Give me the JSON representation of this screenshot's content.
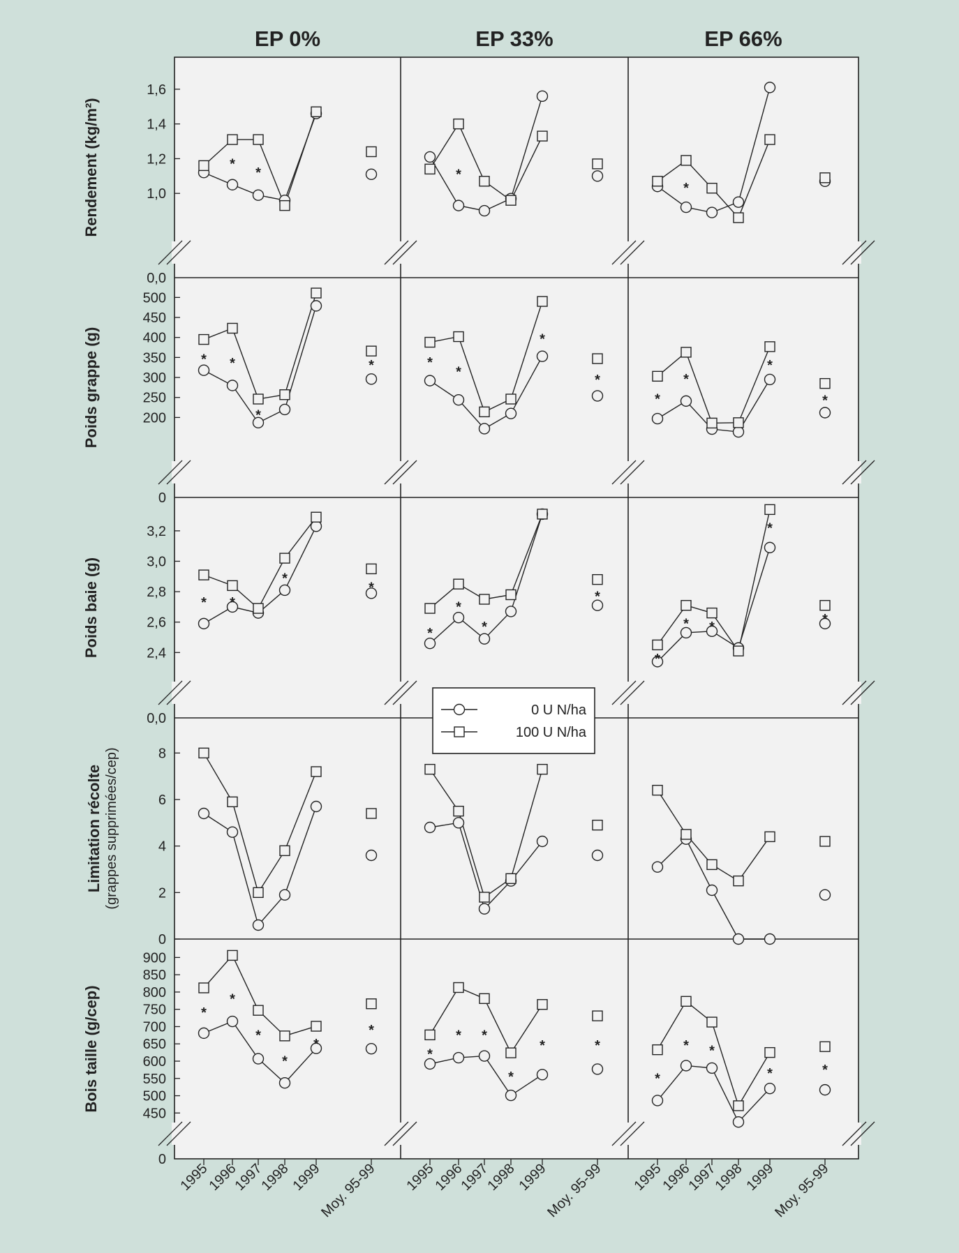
{
  "figure": {
    "columns": [
      "EP 0%",
      "EP 33%",
      "EP 66%"
    ],
    "x_tick_labels": [
      "1995",
      "1996",
      "1997",
      "1998",
      "1999",
      "Moy. 95-99"
    ],
    "legend": [
      {
        "label": "0 U N/ha",
        "marker": "circle"
      },
      {
        "label": "100 U  N/ha",
        "marker": "square"
      }
    ],
    "significance_marker": "*",
    "colors": {
      "background": "#cfe0da",
      "panel": "#f2f2f2",
      "ink": "#222222"
    }
  },
  "chart_data": [
    {
      "type": "line",
      "row": 0,
      "ylabel": "Rendement (kg/m²)",
      "ylabel2": "",
      "ylim": [
        0.82,
        1.72
      ],
      "yticks": [
        "1,0",
        "1,2",
        "1,4",
        "1,6"
      ],
      "ytick_values": [
        1.0,
        1.2,
        1.4,
        1.6
      ],
      "bottom_label": "0,0",
      "axis_break": true,
      "x": [
        "1995",
        "1996",
        "1997",
        "1998",
        "1999",
        "Moy. 95-99"
      ],
      "panels": [
        {
          "column": "EP 0%",
          "series": [
            {
              "name": "0 U N/ha",
              "values": [
                1.12,
                1.05,
                0.99,
                0.96,
                1.46,
                1.11
              ]
            },
            {
              "name": "100 U  N/ha",
              "values": [
                1.16,
                1.31,
                1.31,
                0.93,
                1.47,
                1.24
              ]
            }
          ],
          "stars": [
            {
              "x": 1,
              "y": 1.18
            },
            {
              "x": 2,
              "y": 1.13
            }
          ]
        },
        {
          "column": "EP 33%",
          "series": [
            {
              "name": "0 U N/ha",
              "values": [
                1.21,
                0.93,
                0.9,
                0.97,
                1.56,
                1.1
              ]
            },
            {
              "name": "100 U  N/ha",
              "values": [
                1.14,
                1.4,
                1.07,
                0.96,
                1.33,
                1.17
              ]
            }
          ],
          "stars": [
            {
              "x": 1,
              "y": 1.12
            }
          ]
        },
        {
          "column": "EP 66%",
          "series": [
            {
              "name": "0 U N/ha",
              "values": [
                1.04,
                0.92,
                0.89,
                0.95,
                1.61,
                1.07
              ]
            },
            {
              "name": "100 U  N/ha",
              "values": [
                1.07,
                1.19,
                1.03,
                0.86,
                1.31,
                1.09
              ]
            }
          ],
          "stars": [
            {
              "x": 1,
              "y": 1.04
            }
          ]
        }
      ]
    },
    {
      "type": "line",
      "row": 1,
      "ylabel": "Poids grappe (g)",
      "ylabel2": "",
      "ylim": [
        110,
        525
      ],
      "yticks": [
        "200",
        "250",
        "300",
        "350",
        "400",
        "450",
        "500"
      ],
      "ytick_values": [
        200,
        250,
        300,
        350,
        400,
        450,
        500
      ],
      "bottom_label": "0",
      "axis_break": true,
      "x": [
        "1995",
        "1996",
        "1997",
        "1998",
        "1999",
        "Moy. 95-99"
      ],
      "panels": [
        {
          "column": "EP 0%",
          "series": [
            {
              "name": "0 U N/ha",
              "values": [
                318,
                280,
                187,
                220,
                479,
                296
              ]
            },
            {
              "name": "100 U  N/ha",
              "values": [
                395,
                423,
                246,
                257,
                511,
                366
              ]
            }
          ],
          "stars": [
            {
              "x": 0,
              "y": 350
            },
            {
              "x": 1,
              "y": 340
            },
            {
              "x": 2,
              "y": 210
            },
            {
              "x": 5,
              "y": 335
            }
          ]
        },
        {
          "column": "EP 33%",
          "series": [
            {
              "name": "0 U N/ha",
              "values": [
                292,
                244,
                172,
                210,
                353,
                254
              ]
            },
            {
              "name": "100 U  N/ha",
              "values": [
                388,
                402,
                214,
                246,
                490,
                347
              ]
            }
          ],
          "stars": [
            {
              "x": 0,
              "y": 342
            },
            {
              "x": 1,
              "y": 318
            },
            {
              "x": 4,
              "y": 400
            },
            {
              "x": 5,
              "y": 298
            }
          ]
        },
        {
          "column": "EP 66%",
          "series": [
            {
              "name": "0 U N/ha",
              "values": [
                197,
                241,
                171,
                164,
                295,
                212
              ]
            },
            {
              "name": "100 U  N/ha",
              "values": [
                303,
                363,
                186,
                187,
                377,
                285
              ]
            }
          ],
          "stars": [
            {
              "x": 0,
              "y": 250
            },
            {
              "x": 1,
              "y": 300
            },
            {
              "x": 4,
              "y": 335
            },
            {
              "x": 5,
              "y": 247
            }
          ]
        }
      ]
    },
    {
      "type": "line",
      "row": 2,
      "ylabel": "Poids baie (g)",
      "ylabel2": "",
      "ylim": [
        2.25,
        3.36
      ],
      "yticks": [
        "2,4",
        "2,6",
        "2,8",
        "3,0",
        "3,2"
      ],
      "ytick_values": [
        2.4,
        2.6,
        2.8,
        3.0,
        3.2
      ],
      "bottom_label": "0,0",
      "axis_break": true,
      "x": [
        "1995",
        "1996",
        "1997",
        "1998",
        "1999",
        "Moy. 95-99"
      ],
      "panels": [
        {
          "column": "EP 0%",
          "series": [
            {
              "name": "0 U N/ha",
              "values": [
                2.59,
                2.7,
                2.66,
                2.81,
                3.23,
                2.79
              ]
            },
            {
              "name": "100 U  N/ha",
              "values": [
                2.91,
                2.84,
                2.69,
                3.02,
                3.29,
                2.95
              ]
            }
          ],
          "stars": [
            {
              "x": 0,
              "y": 2.74
            },
            {
              "x": 1,
              "y": 2.74
            },
            {
              "x": 3,
              "y": 2.9
            },
            {
              "x": 5,
              "y": 2.84
            }
          ]
        },
        {
          "column": "EP 33%",
          "series": [
            {
              "name": "0 U N/ha",
              "values": [
                2.46,
                2.63,
                2.49,
                2.67,
                3.31,
                2.71
              ]
            },
            {
              "name": "100 U  N/ha",
              "values": [
                2.69,
                2.85,
                2.75,
                2.78,
                3.31,
                2.88
              ]
            }
          ],
          "stars": [
            {
              "x": 0,
              "y": 2.54
            },
            {
              "x": 1,
              "y": 2.71
            },
            {
              "x": 2,
              "y": 2.58
            },
            {
              "x": 5,
              "y": 2.78
            }
          ]
        },
        {
          "column": "EP 66%",
          "series": [
            {
              "name": "0 U N/ha",
              "values": [
                2.34,
                2.53,
                2.54,
                2.43,
                3.09,
                2.59
              ]
            },
            {
              "name": "100 U  N/ha",
              "values": [
                2.45,
                2.71,
                2.66,
                2.41,
                3.34,
                2.71
              ]
            }
          ],
          "stars": [
            {
              "x": 0,
              "y": 2.37
            },
            {
              "x": 1,
              "y": 2.6
            },
            {
              "x": 2,
              "y": 2.58
            },
            {
              "x": 4,
              "y": 3.23
            },
            {
              "x": 5,
              "y": 2.63
            }
          ]
        }
      ]
    },
    {
      "type": "line",
      "row": 3,
      "ylabel": "Limitation récolte",
      "ylabel2": "(grappes supprimées/cep)",
      "ylim": [
        0,
        9.3
      ],
      "yticks": [
        "0",
        "2",
        "4",
        "6",
        "8"
      ],
      "ytick_values": [
        0,
        2,
        4,
        6,
        8
      ],
      "bottom_label": "",
      "axis_break": false,
      "x": [
        "1995",
        "1996",
        "1997",
        "1998",
        "1999",
        "Moy. 95-99"
      ],
      "panels": [
        {
          "column": "EP 0%",
          "series": [
            {
              "name": "0 U N/ha",
              "values": [
                5.4,
                4.6,
                0.6,
                1.9,
                5.7,
                3.6
              ]
            },
            {
              "name": "100 U  N/ha",
              "values": [
                8.0,
                5.9,
                2.0,
                3.8,
                7.2,
                5.4
              ]
            }
          ],
          "stars": []
        },
        {
          "column": "EP 33%",
          "series": [
            {
              "name": "0 U N/ha",
              "values": [
                4.8,
                5.0,
                1.3,
                2.5,
                4.2,
                3.6
              ]
            },
            {
              "name": "100 U  N/ha",
              "values": [
                7.3,
                5.5,
                1.8,
                2.6,
                7.3,
                4.9
              ]
            }
          ],
          "stars": []
        },
        {
          "column": "EP 66%",
          "series": [
            {
              "name": "0 U N/ha",
              "values": [
                3.1,
                4.3,
                2.1,
                0.0,
                0.0,
                1.9
              ]
            },
            {
              "name": "100 U  N/ha",
              "values": [
                6.4,
                4.5,
                3.2,
                2.5,
                4.4,
                4.2
              ]
            }
          ],
          "stars": []
        }
      ]
    },
    {
      "type": "line",
      "row": 4,
      "ylabel": "Bois taille (g/cep)",
      "ylabel2": "",
      "ylim": [
        380,
        925
      ],
      "yticks": [
        "450",
        "500",
        "550",
        "600",
        "650",
        "700",
        "750",
        "800",
        "850",
        "900"
      ],
      "ytick_values": [
        450,
        500,
        550,
        600,
        650,
        700,
        750,
        800,
        850,
        900
      ],
      "bottom_label": "0",
      "axis_break": true,
      "x": [
        "1995",
        "1996",
        "1997",
        "1998",
        "1999",
        "Moy. 95-99"
      ],
      "panels": [
        {
          "column": "EP 0%",
          "series": [
            {
              "name": "0 U N/ha",
              "values": [
                681,
                715,
                607,
                537,
                637,
                636
              ]
            },
            {
              "name": "100 U  N/ha",
              "values": [
                812,
                906,
                747,
                673,
                701,
                766
              ]
            }
          ],
          "stars": [
            {
              "x": 0,
              "y": 745
            },
            {
              "x": 1,
              "y": 785
            },
            {
              "x": 2,
              "y": 680
            },
            {
              "x": 3,
              "y": 605
            },
            {
              "x": 4,
              "y": 655
            },
            {
              "x": 5,
              "y": 695
            }
          ]
        },
        {
          "column": "EP 33%",
          "series": [
            {
              "name": "0 U N/ha",
              "values": [
                592,
                610,
                615,
                501,
                561,
                577
              ]
            },
            {
              "name": "100 U  N/ha",
              "values": [
                676,
                813,
                781,
                624,
                764,
                731
              ]
            }
          ],
          "stars": [
            {
              "x": 0,
              "y": 625
            },
            {
              "x": 1,
              "y": 680
            },
            {
              "x": 2,
              "y": 680
            },
            {
              "x": 3,
              "y": 560
            },
            {
              "x": 4,
              "y": 650
            },
            {
              "x": 5,
              "y": 650
            }
          ]
        },
        {
          "column": "EP 66%",
          "series": [
            {
              "name": "0 U N/ha",
              "values": [
                486,
                587,
                580,
                424,
                521,
                517
              ]
            },
            {
              "name": "100 U  N/ha",
              "values": [
                633,
                773,
                713,
                471,
                625,
                642
              ]
            }
          ],
          "stars": [
            {
              "x": 0,
              "y": 555
            },
            {
              "x": 1,
              "y": 650
            },
            {
              "x": 2,
              "y": 635
            },
            {
              "x": 4,
              "y": 570
            },
            {
              "x": 5,
              "y": 580
            }
          ]
        }
      ]
    }
  ]
}
